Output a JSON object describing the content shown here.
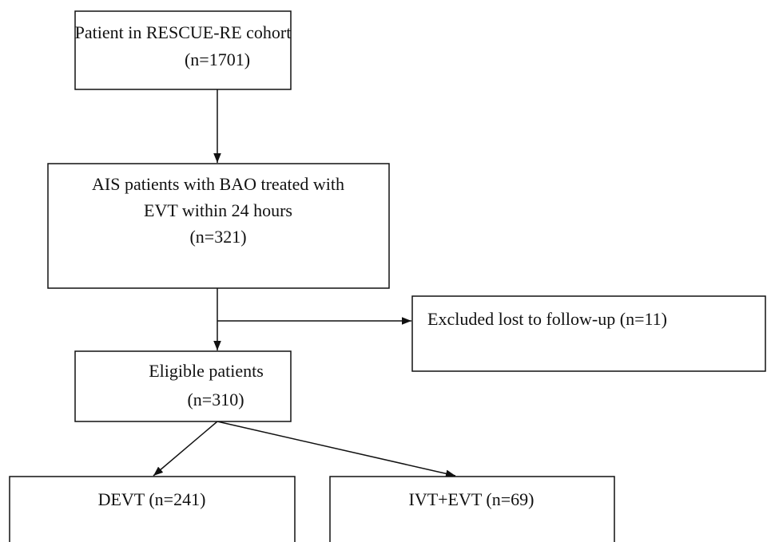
{
  "nodes": [
    {
      "lines": [
        "Patient in RESCUE-RE cohort",
        "(n=1701)"
      ]
    },
    {
      "lines": [
        "AIS patients with BAO treated with",
        "EVT within 24 hours",
        "(n=321)"
      ]
    },
    {
      "lines": [
        "Excluded lost to follow-up (n=11)"
      ]
    },
    {
      "lines": [
        "Eligible patients",
        "(n=310)"
      ]
    },
    {
      "lines": [
        "DEVT (n=241)"
      ]
    },
    {
      "lines": [
        "IVT+EVT (n=69)"
      ]
    }
  ]
}
